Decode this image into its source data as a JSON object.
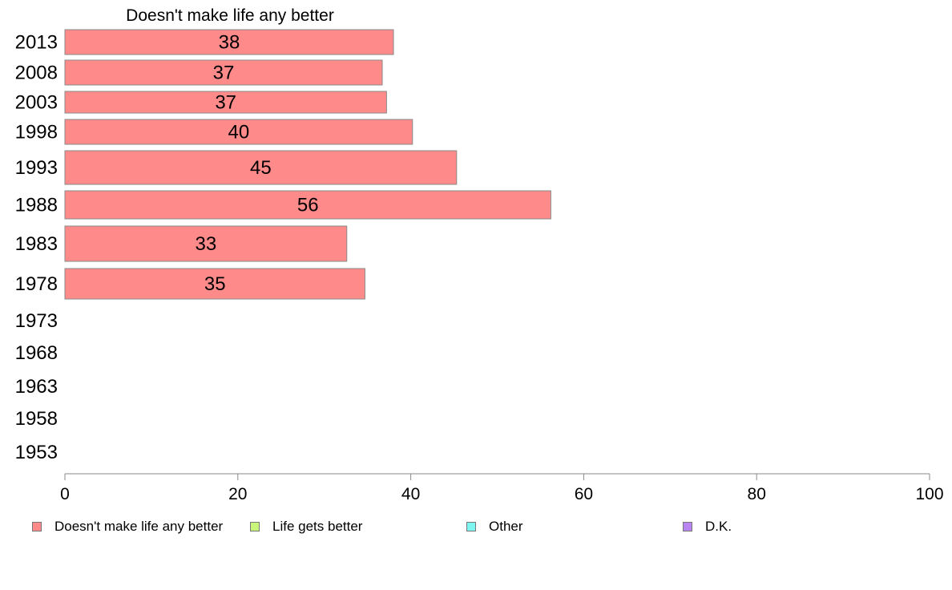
{
  "chart_data": {
    "type": "bar",
    "orientation": "horizontal",
    "title": "Doesn't make life any better",
    "categories": [
      "2013",
      "2008",
      "2003",
      "1998",
      "1993",
      "1988",
      "1983",
      "1978",
      "1973",
      "1968",
      "1963",
      "1958",
      "1953"
    ],
    "series": [
      {
        "name": "Doesn't make life any better",
        "color": "#ff8a8a",
        "values": [
          38,
          36.7,
          37.2,
          40.2,
          45.3,
          56.2,
          32.6,
          34.7,
          null,
          null,
          null,
          null,
          null
        ],
        "labels": [
          "38",
          "37",
          "37",
          "40",
          "45",
          "56",
          "33",
          "35",
          "",
          "",
          "",
          "",
          ""
        ]
      }
    ],
    "xlim": [
      0,
      100
    ],
    "xticks": [
      "0",
      "20",
      "40",
      "60",
      "80",
      "100"
    ],
    "grid": false,
    "legend": {
      "position": "bottom",
      "entries": [
        {
          "label": "Doesn't make life any better",
          "color": "#ff8a8a"
        },
        {
          "label": "Life gets better",
          "color": "#c8f57a"
        },
        {
          "label": "Other",
          "color": "#7df5f0"
        },
        {
          "label": "D.K.",
          "color": "#b784f0"
        }
      ]
    }
  }
}
